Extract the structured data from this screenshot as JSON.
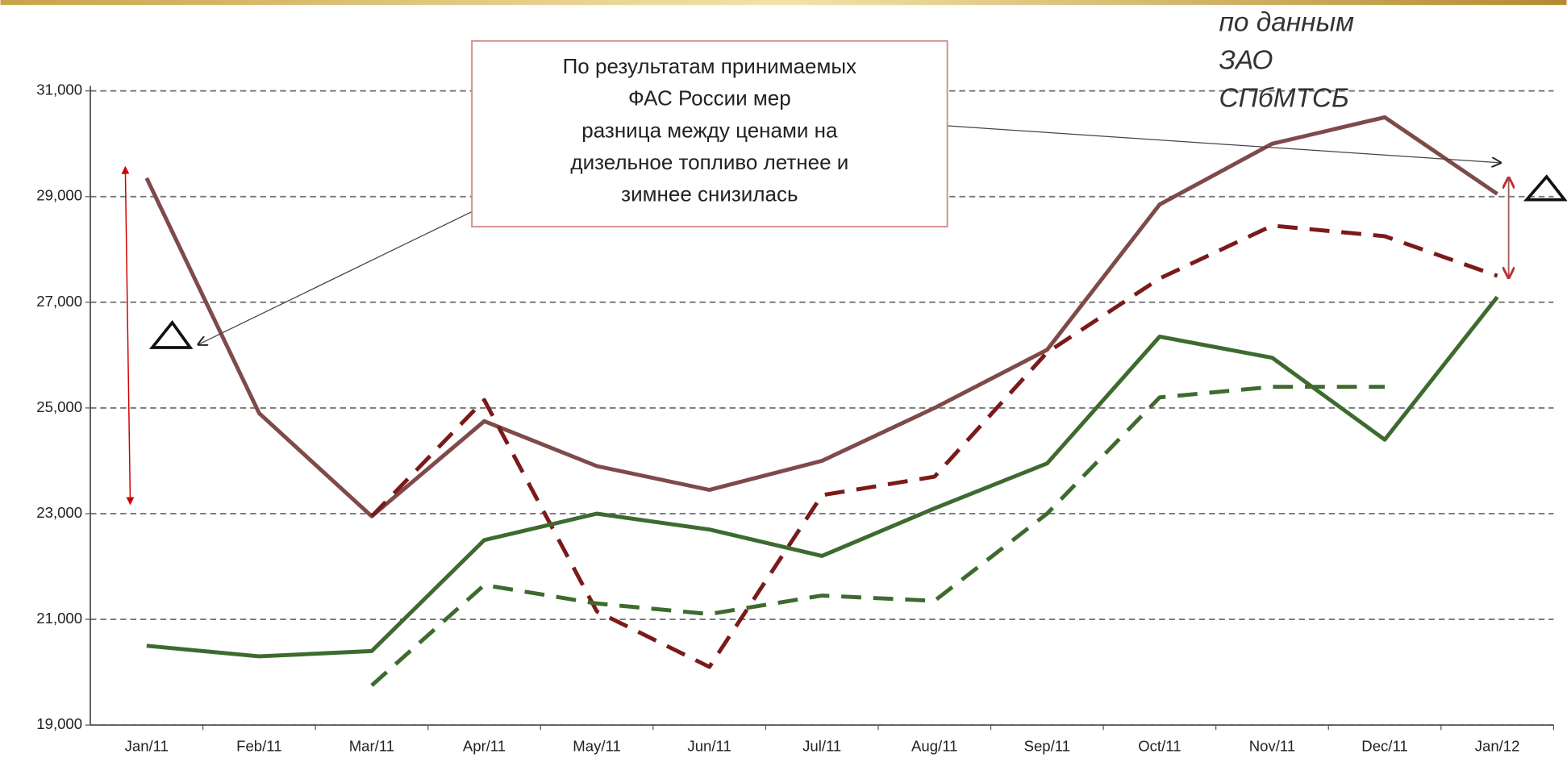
{
  "chart_data": {
    "type": "line",
    "categories": [
      "Jan/11",
      "Feb/11",
      "Mar/11",
      "Apr/11",
      "May/11",
      "Jun/11",
      "Jul/11",
      "Aug/11",
      "Sep/11",
      "Oct/11",
      "Nov/11",
      "Dec/11",
      "Jan/12"
    ],
    "series": [
      {
        "color": "#7f4a4a",
        "dashed": false,
        "values": [
          29350,
          24900,
          22950,
          24750,
          23900,
          23450,
          24000,
          25000,
          26100,
          28850,
          30000,
          30500,
          29050
        ]
      },
      {
        "color": "#7b1a1a",
        "dashed": true,
        "values": [
          null,
          null,
          22950,
          25150,
          21150,
          20100,
          23350,
          23700,
          26050,
          27450,
          28450,
          28250,
          27500
        ]
      },
      {
        "color": "#3d6b2f",
        "dashed": false,
        "values": [
          20500,
          20300,
          20400,
          22500,
          23000,
          22700,
          22200,
          23100,
          23950,
          26350,
          25950,
          24400,
          27100
        ]
      },
      {
        "color": "#3d6b2f",
        "dashed": true,
        "values": [
          null,
          null,
          19750,
          21650,
          21300,
          21100,
          21450,
          21350,
          23000,
          25200,
          25400,
          25400,
          null
        ]
      }
    ],
    "ylim": [
      19000,
      31000
    ],
    "yticks": [
      {
        "value": 19000,
        "label": "19,000"
      },
      {
        "value": 21000,
        "label": "21,000"
      },
      {
        "value": 23000,
        "label": "23,000"
      },
      {
        "value": 25000,
        "label": "25,000"
      },
      {
        "value": 27000,
        "label": "27,000"
      },
      {
        "value": 29000,
        "label": "29,000"
      },
      {
        "value": 31000,
        "label": "31,000"
      }
    ],
    "grid": true,
    "annotation": [
      "По результатам принимаемых",
      "ФАС России мер",
      "разница между ценами на",
      "дизельное топливо летнее и",
      "зимнее снизилась"
    ],
    "source_note": [
      "по данным",
      "ЗАО",
      "СПбМТСБ"
    ]
  }
}
